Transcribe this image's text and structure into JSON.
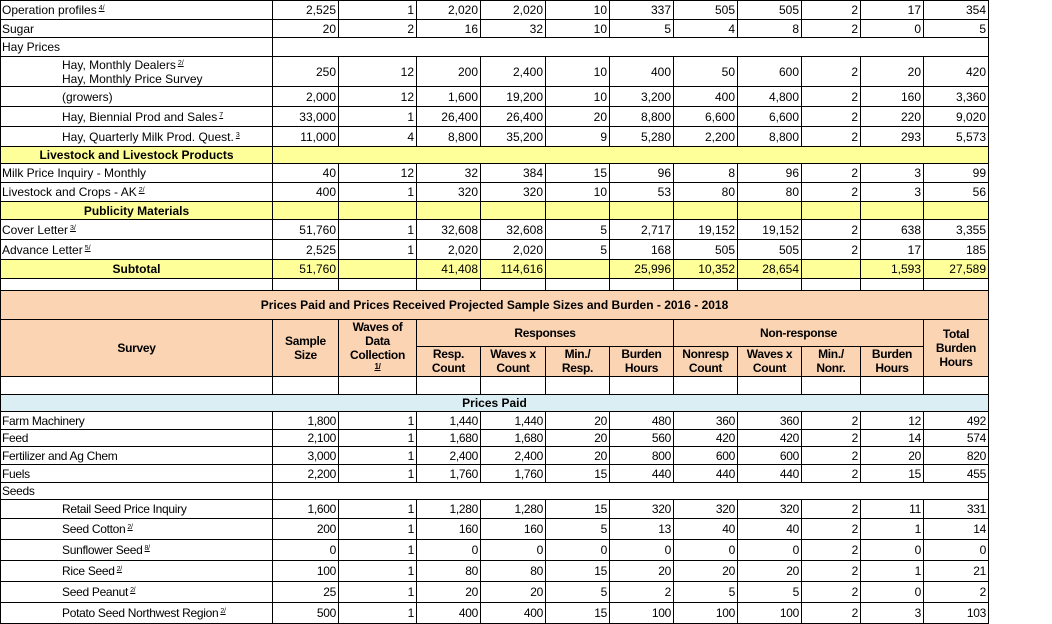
{
  "colors": {
    "section_yellow": "#ffff99",
    "header_peach": "#fbd4b4",
    "prices_paid_blue": "#daeef3"
  },
  "top_rows": [
    {
      "kind": "data",
      "label": "Operation profiles",
      "note": "4/",
      "values": [
        "2,525",
        "1",
        "2,020",
        "2,020",
        "10",
        "337",
        "505",
        "505",
        "2",
        "17",
        "354"
      ]
    },
    {
      "kind": "data",
      "label": "Sugar",
      "note": "",
      "values": [
        "20",
        "2",
        "16",
        "32",
        "10",
        "5",
        "4",
        "8",
        "2",
        "0",
        "5"
      ]
    },
    {
      "kind": "group",
      "label": "Hay Prices"
    },
    {
      "kind": "overlap",
      "label": "Hay, Monthly Dealers",
      "note": "2/",
      "label2": "Hay, Monthly Price Survey",
      "values": [
        "250",
        "12",
        "200",
        "2,400",
        "10",
        "400",
        "50",
        "600",
        "2",
        "20",
        "420"
      ]
    },
    {
      "kind": "data",
      "indent": true,
      "label": "(growers)",
      "note": "",
      "values": [
        "2,000",
        "12",
        "1,600",
        "19,200",
        "10",
        "3,200",
        "400",
        "4,800",
        "2",
        "160",
        "3,360"
      ]
    },
    {
      "kind": "data",
      "indent": true,
      "label": "Hay, Biennial Prod and Sales",
      "note": "7",
      "values": [
        "33,000",
        "1",
        "26,400",
        "26,400",
        "20",
        "8,800",
        "6,600",
        "6,600",
        "2",
        "220",
        "9,020"
      ]
    },
    {
      "kind": "data",
      "indent": true,
      "label": "Hay, Quarterly Milk Prod. Quest.",
      "note": "3",
      "values": [
        "11,000",
        "4",
        "8,800",
        "35,200",
        "9",
        "5,280",
        "2,200",
        "8,800",
        "2",
        "293",
        "5,573"
      ]
    },
    {
      "kind": "section",
      "label": "Livestock and Livestock Products"
    },
    {
      "kind": "data",
      "label": "Milk Price Inquiry - Monthly",
      "note": "",
      "values": [
        "40",
        "12",
        "32",
        "384",
        "15",
        "96",
        "8",
        "96",
        "2",
        "3",
        "99"
      ]
    },
    {
      "kind": "data",
      "label": "Livestock and Crops - AK",
      "note": "2/",
      "values": [
        "400",
        "1",
        "320",
        "320",
        "10",
        "53",
        "80",
        "80",
        "2",
        "3",
        "56"
      ]
    },
    {
      "kind": "section-cells",
      "label": "Publicity Materials",
      "values": [
        "",
        "",
        "",
        "",
        "",
        "",
        "",
        "",
        "",
        "",
        ""
      ]
    },
    {
      "kind": "data",
      "label": "Cover Letter",
      "note": "3/",
      "values": [
        "51,760",
        "1",
        "32,608",
        "32,608",
        "5",
        "2,717",
        "19,152",
        "19,152",
        "2",
        "638",
        "3,355"
      ]
    },
    {
      "kind": "data",
      "label": "Advance Letter",
      "note": "5/",
      "values": [
        "2,525",
        "1",
        "2,020",
        "2,020",
        "5",
        "168",
        "505",
        "505",
        "2",
        "17",
        "185"
      ]
    },
    {
      "kind": "subtotal",
      "label": "Subtotal",
      "values": [
        "51,760",
        "",
        "41,408",
        "114,616",
        "",
        "25,996",
        "10,352",
        "28,654",
        "",
        "1,593",
        "27,589"
      ]
    },
    {
      "kind": "blank",
      "values": [
        "",
        "",
        "",
        "",
        "",
        "",
        "",
        "",
        "",
        "",
        ""
      ]
    }
  ],
  "projection": {
    "title": "Prices Paid and Prices Received Projected Sample Sizes and Burden - 2016 - 2018",
    "headers": {
      "survey": "Survey",
      "sample_size": "Sample Size",
      "waves": "Waves of Data Collection",
      "waves_note": "1/",
      "responses": "Responses",
      "nonresponse": "Non-response",
      "total": "Total Burden Hours",
      "resp_count": "Resp. Count",
      "resp_waves": "Waves x Count",
      "resp_min": "Min./ Resp.",
      "resp_burden": "Burden Hours",
      "non_count": "Nonresp Count",
      "non_waves": "Waves x Count",
      "non_min": "Min./ Nonr.",
      "non_burden": "Burden Hours"
    },
    "section_label": "Prices Paid",
    "rows": [
      {
        "kind": "data",
        "label": "Farm Machinery",
        "note": "",
        "values": [
          "1,800",
          "1",
          "1,440",
          "1,440",
          "20",
          "480",
          "360",
          "360",
          "2",
          "12",
          "492"
        ]
      },
      {
        "kind": "data",
        "label": "Feed",
        "note": "",
        "values": [
          "2,100",
          "1",
          "1,680",
          "1,680",
          "20",
          "560",
          "420",
          "420",
          "2",
          "14",
          "574"
        ]
      },
      {
        "kind": "data",
        "label": "Fertilizer and Ag Chem",
        "note": "",
        "values": [
          "3,000",
          "1",
          "2,400",
          "2,400",
          "20",
          "800",
          "600",
          "600",
          "2",
          "20",
          "820"
        ]
      },
      {
        "kind": "data",
        "label": "Fuels",
        "note": "",
        "values": [
          "2,200",
          "1",
          "1,760",
          "1,760",
          "15",
          "440",
          "440",
          "440",
          "2",
          "15",
          "455"
        ]
      },
      {
        "kind": "group",
        "label": "Seeds"
      },
      {
        "kind": "data",
        "indent": true,
        "label": "Retail Seed Price Inquiry",
        "note": "",
        "values": [
          "1,600",
          "1",
          "1,280",
          "1,280",
          "15",
          "320",
          "320",
          "320",
          "2",
          "11",
          "331"
        ]
      },
      {
        "kind": "data",
        "indent": true,
        "label": "Seed Cotton",
        "note": "2/",
        "values": [
          "200",
          "1",
          "160",
          "160",
          "5",
          "13",
          "40",
          "40",
          "2",
          "1",
          "14"
        ]
      },
      {
        "kind": "data",
        "indent": true,
        "label": "Sunflower Seed",
        "note": "8/",
        "values": [
          "0",
          "1",
          "0",
          "0",
          "0",
          "0",
          "0",
          "0",
          "2",
          "0",
          "0"
        ]
      },
      {
        "kind": "data",
        "indent": true,
        "label": "Rice Seed",
        "note": "2/",
        "values": [
          "100",
          "1",
          "80",
          "80",
          "15",
          "20",
          "20",
          "20",
          "2",
          "1",
          "21"
        ]
      },
      {
        "kind": "data",
        "indent": true,
        "label": "Seed Peanut",
        "note": "2/",
        "values": [
          "25",
          "1",
          "20",
          "20",
          "5",
          "2",
          "5",
          "5",
          "2",
          "0",
          "2"
        ]
      },
      {
        "kind": "data",
        "indent": true,
        "label": "Potato Seed Northwest Region",
        "note": "2/",
        "values": [
          "500",
          "1",
          "400",
          "400",
          "15",
          "100",
          "100",
          "100",
          "2",
          "3",
          "103"
        ]
      }
    ]
  }
}
